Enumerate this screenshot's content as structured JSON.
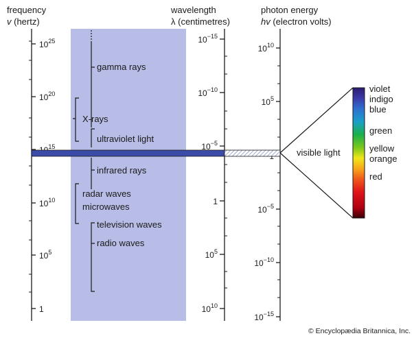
{
  "headers": {
    "frequency": {
      "line1": "frequency",
      "sym": "v",
      "unit": " (hertz)"
    },
    "wavelength": {
      "line1": "wavelength",
      "line2": "λ (centimetres)"
    },
    "energy": {
      "line1": "photon energy",
      "sym": "hv",
      "unit": " (electron volts)"
    }
  },
  "frequency_ticks": [
    {
      "base": "10",
      "exp": "25"
    },
    {
      "base": "10",
      "exp": "20"
    },
    {
      "base": "10",
      "exp": "15"
    },
    {
      "base": "10",
      "exp": "10"
    },
    {
      "base": "10",
      "exp": "5"
    },
    {
      "base": "1",
      "exp": ""
    }
  ],
  "wavelength_ticks": [
    {
      "base": "10",
      "exp": "−15"
    },
    {
      "base": "10",
      "exp": "−10"
    },
    {
      "base": "10",
      "exp": "−5"
    },
    {
      "base": "1",
      "exp": ""
    },
    {
      "base": "10",
      "exp": "5"
    },
    {
      "base": "10",
      "exp": "10"
    }
  ],
  "energy_ticks": [
    {
      "base": "10",
      "exp": "10"
    },
    {
      "base": "10",
      "exp": "5"
    },
    {
      "base": "1",
      "exp": ""
    },
    {
      "base": "10",
      "exp": "−5"
    },
    {
      "base": "10",
      "exp": "−10"
    },
    {
      "base": "10",
      "exp": "−15"
    }
  ],
  "bands": {
    "gamma": "gamma rays",
    "xray": "X-rays",
    "uv": "ultraviolet light",
    "ir": "infrared rays",
    "radar": "radar waves",
    "micro": "microwaves",
    "tv": "television waves",
    "radio": "radio waves"
  },
  "visible_label": "visible light",
  "color_labels": [
    "violet",
    "indigo",
    "blue",
    "green",
    "yellow",
    "orange",
    "red"
  ],
  "colors": {
    "band_fill": "#b7bde6",
    "visible_bar": "#3a4ca8",
    "text": "#1a1a1a"
  },
  "credit": "© Encyclopædia Britannica, Inc."
}
